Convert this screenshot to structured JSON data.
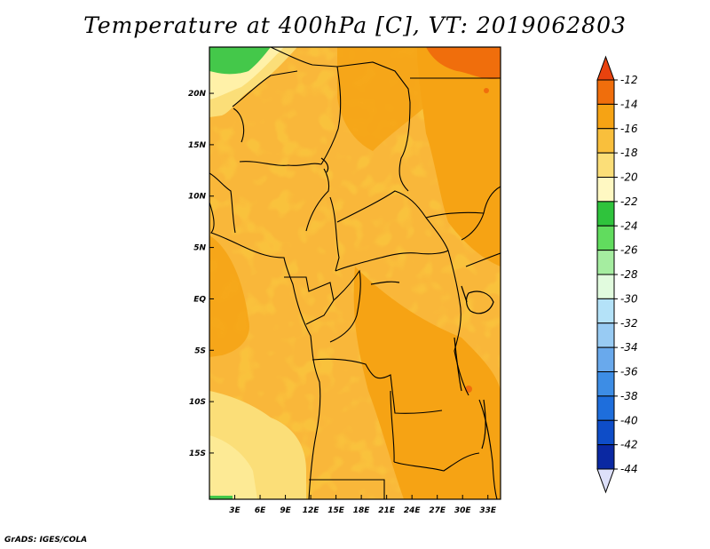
{
  "title": "Temperature at 400hPa [C], VT: 2019062803",
  "credit": "GrADS: IGES/COLA",
  "map": {
    "projection": "latlon",
    "lon_range": [
      0,
      34.5
    ],
    "lat_range": [
      -19.5,
      24.5
    ],
    "lon_ticks": [
      "3E",
      "6E",
      "9E",
      "12E",
      "15E",
      "18E",
      "21E",
      "24E",
      "27E",
      "30E",
      "33E"
    ],
    "lat_ticks": [
      "20N",
      "15N",
      "10N",
      "5N",
      "EQ",
      "5S",
      "10S",
      "15S"
    ],
    "lon_tick_values": [
      3,
      6,
      9,
      12,
      15,
      18,
      21,
      24,
      27,
      30,
      33
    ],
    "lat_tick_values": [
      20,
      15,
      10,
      5,
      0,
      -5,
      -10,
      -15
    ],
    "dominant_band": "-16 to -14",
    "features": [
      "country borders",
      "coastline",
      "lakes",
      "shaded temperature field"
    ]
  },
  "colorbar": {
    "labels": [
      "-12",
      "-14",
      "-16",
      "-18",
      "-20",
      "-22",
      "-24",
      "-26",
      "-28",
      "-30",
      "-32",
      "-34",
      "-36",
      "-38",
      "-40",
      "-42",
      "-44"
    ],
    "colors_top_to_bottom": [
      "#e8420e",
      "#f06e0c",
      "#f6a314",
      "#f9bf3c",
      "#fbde78",
      "#fff8c2",
      "#2fc33c",
      "#61dc5e",
      "#a5eda0",
      "#e1fbde",
      "#b4e2f8",
      "#98cbf3",
      "#69a9ec",
      "#3d8de5",
      "#1e6edc",
      "#0e4dc8",
      "#0a28a2",
      "#081777"
    ],
    "over_color": "#e8420e",
    "under_color": "#dde0fa"
  }
}
